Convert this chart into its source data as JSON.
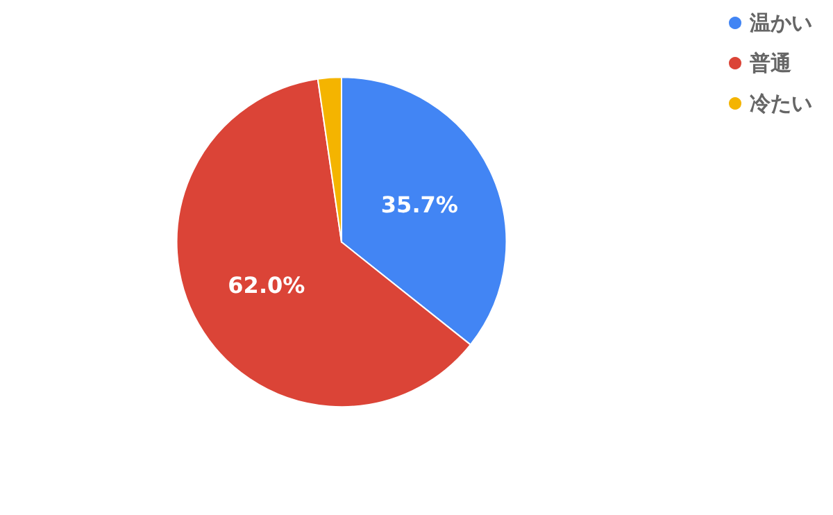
{
  "chart_data": {
    "type": "pie",
    "categories": [
      "温かい",
      "普通",
      "冷たい"
    ],
    "values": [
      35.7,
      62.0,
      2.3
    ],
    "colors": [
      "#4285f4",
      "#db4437",
      "#f4b400"
    ],
    "value_labels": [
      "35.7%",
      "62.0%",
      null
    ],
    "legend": "top right"
  }
}
